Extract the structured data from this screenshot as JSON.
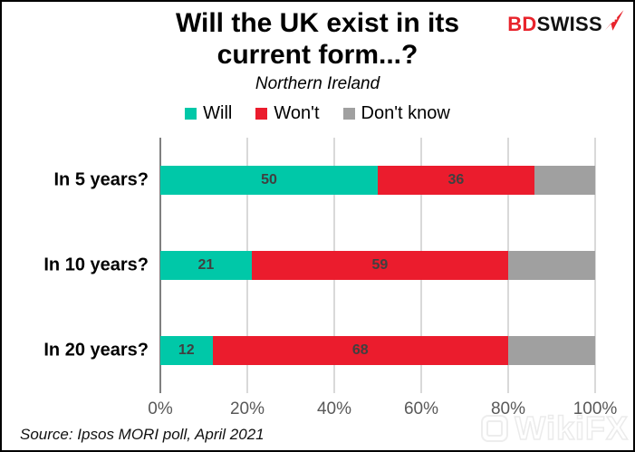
{
  "logo": {
    "text_red": "BD",
    "text_black": "SWISS",
    "red": "#E8242C"
  },
  "chart_data": {
    "type": "bar",
    "orientation": "horizontal",
    "stacked": true,
    "title": "Will the UK exist in its current form...?",
    "subtitle": "Northern Ireland",
    "categories": [
      "In 5 years?",
      "In 10 years?",
      "In 20 years?"
    ],
    "series": [
      {
        "name": "Will",
        "color": "#00C8A8",
        "values": [
          50,
          21,
          12
        ],
        "show_value_labels": true
      },
      {
        "name": "Won't",
        "color": "#EB1C2D",
        "values": [
          36,
          59,
          68
        ],
        "show_value_labels": true
      },
      {
        "name": "Don't know",
        "color": "#A0A0A0",
        "values": [
          14,
          20,
          20
        ],
        "show_value_labels": false
      }
    ],
    "xlim": [
      0,
      100
    ],
    "x_tick_values": [
      0,
      20,
      40,
      60,
      80,
      100
    ],
    "x_tick_labels": [
      "0%",
      "20%",
      "40%",
      "60%",
      "80%",
      "100%"
    ],
    "grid": true,
    "legend_position": "top",
    "value_label_color": "#404040",
    "source": "Source: Ipsos MORI poll, April 2021"
  },
  "watermark": {
    "text": "WikiFX"
  }
}
